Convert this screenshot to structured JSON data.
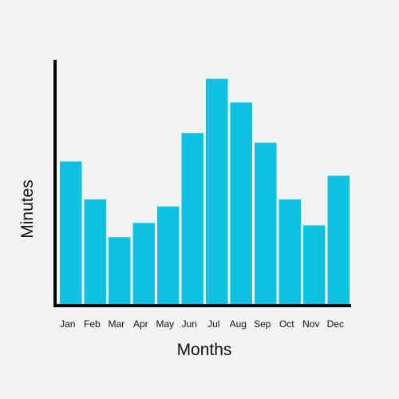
{
  "chart_data": {
    "type": "bar",
    "title": "",
    "xlabel": "Months",
    "ylabel": "Minutes",
    "categories": [
      "Jan",
      "Feb",
      "Mar",
      "Apr",
      "May",
      "Jun",
      "Jul",
      "Aug",
      "Sep",
      "Oct",
      "Nov",
      "Dec"
    ],
    "values": [
      61,
      45,
      29,
      35,
      42,
      73,
      96,
      86,
      69,
      45,
      34,
      55
    ],
    "ylim": [
      0,
      100
    ],
    "grid": false,
    "legend": "none",
    "bar_color": "#0fc0e0",
    "axis_color": "#000000"
  }
}
